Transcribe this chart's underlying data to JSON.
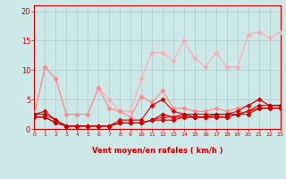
{
  "background_color": "#cce8e8",
  "grid_color": "#aacccc",
  "xlabel": "Vent moyen/en rafales ( km/h )",
  "x_ticks": [
    0,
    1,
    2,
    3,
    4,
    5,
    6,
    7,
    8,
    9,
    10,
    11,
    12,
    13,
    14,
    15,
    16,
    17,
    18,
    19,
    20,
    21,
    22,
    23
  ],
  "ylim": [
    0,
    21
  ],
  "xlim": [
    0,
    23
  ],
  "yticks": [
    0,
    5,
    10,
    15,
    20
  ],
  "series": [
    {
      "x": [
        0,
        1,
        2,
        3,
        4,
        5,
        6,
        7,
        8,
        9,
        10,
        11,
        12,
        13,
        14,
        15,
        16,
        17,
        18,
        19,
        20,
        21,
        22,
        23
      ],
      "y": [
        2.5,
        10.5,
        8.5,
        2.5,
        2.5,
        2.5,
        7.0,
        5.0,
        3.0,
        3.0,
        8.5,
        13.0,
        13.0,
        11.5,
        15.0,
        12.0,
        10.5,
        13.0,
        10.5,
        10.5,
        16.0,
        16.5,
        15.5,
        16.5
      ],
      "color": "#ffaaaa",
      "marker": "D",
      "linewidth": 0.8,
      "markersize": 2.5
    },
    {
      "x": [
        0,
        1,
        2,
        3,
        4,
        5,
        6,
        7,
        8,
        9,
        10,
        11,
        12,
        13,
        14,
        15,
        16,
        17,
        18,
        19,
        20,
        21,
        22,
        23
      ],
      "y": [
        2.5,
        10.5,
        8.5,
        2.5,
        2.5,
        2.5,
        7.0,
        3.5,
        3.0,
        2.0,
        5.5,
        4.5,
        6.5,
        3.5,
        3.5,
        3.0,
        3.0,
        3.5,
        3.0,
        3.5,
        4.0,
        5.0,
        4.0,
        4.0
      ],
      "color": "#ff8888",
      "marker": "D",
      "linewidth": 0.8,
      "markersize": 2.5
    },
    {
      "x": [
        0,
        1,
        2,
        3,
        4,
        5,
        6,
        7,
        8,
        9,
        10,
        11,
        12,
        13,
        14,
        15,
        16,
        17,
        18,
        19,
        20,
        21,
        22,
        23
      ],
      "y": [
        2.5,
        3.0,
        1.5,
        0.5,
        0.5,
        0.5,
        0.5,
        0.5,
        1.5,
        1.5,
        1.5,
        4.0,
        5.0,
        3.0,
        2.5,
        2.5,
        2.5,
        2.5,
        2.5,
        3.0,
        4.0,
        5.0,
        4.0,
        4.0
      ],
      "color": "#dd0000",
      "marker": "D",
      "linewidth": 0.8,
      "markersize": 2.5
    },
    {
      "x": [
        0,
        1,
        2,
        3,
        4,
        5,
        6,
        7,
        8,
        9,
        10,
        11,
        12,
        13,
        14,
        15,
        16,
        17,
        18,
        19,
        20,
        21,
        22,
        23
      ],
      "y": [
        2.5,
        2.5,
        1.5,
        0.5,
        0.5,
        0.5,
        0.5,
        0.5,
        1.0,
        1.0,
        1.0,
        1.5,
        2.5,
        2.0,
        2.5,
        2.0,
        2.0,
        2.5,
        2.5,
        2.5,
        3.0,
        4.0,
        4.0,
        4.0
      ],
      "color": "#bb0000",
      "marker": "D",
      "linewidth": 0.8,
      "markersize": 2.5
    },
    {
      "x": [
        0,
        1,
        2,
        3,
        4,
        5,
        6,
        7,
        8,
        9,
        10,
        11,
        12,
        13,
        14,
        15,
        16,
        17,
        18,
        19,
        20,
        21,
        22,
        23
      ],
      "y": [
        2.0,
        2.0,
        1.0,
        0.5,
        0.5,
        0.5,
        0.5,
        0.5,
        1.0,
        1.0,
        1.0,
        1.5,
        2.0,
        2.0,
        2.0,
        2.0,
        2.0,
        2.0,
        2.0,
        2.5,
        3.0,
        3.5,
        3.5,
        3.5
      ],
      "color": "#ff0000",
      "marker": "D",
      "linewidth": 0.8,
      "markersize": 2.5
    },
    {
      "x": [
        0,
        1,
        2,
        3,
        4,
        5,
        6,
        7,
        8,
        9,
        10,
        11,
        12,
        13,
        14,
        15,
        16,
        17,
        18,
        19,
        20,
        21,
        22,
        23
      ],
      "y": [
        2.0,
        2.0,
        1.0,
        0.5,
        0.5,
        0.5,
        0.5,
        0.5,
        1.0,
        1.0,
        1.0,
        1.5,
        1.5,
        1.5,
        2.0,
        2.0,
        2.0,
        2.0,
        2.0,
        2.5,
        2.5,
        3.5,
        3.5,
        3.5
      ],
      "color": "#cc0000",
      "marker": "D",
      "linewidth": 0.8,
      "markersize": 2.5
    }
  ],
  "wind_arrows": {
    "x": [
      0,
      1,
      2,
      3,
      4,
      5,
      6,
      7,
      8,
      9,
      10,
      11,
      12,
      13,
      14,
      15,
      16,
      17,
      18,
      19,
      20,
      21,
      22,
      23
    ],
    "angles_deg": [
      225,
      225,
      225,
      225,
      225,
      225,
      225,
      225,
      225,
      225,
      45,
      45,
      90,
      90,
      90,
      90,
      90,
      90,
      90,
      90,
      90,
      90,
      90,
      90
    ]
  },
  "spine_color": "#cc0000",
  "tick_color": "#cc0000",
  "label_color": "#cc0000",
  "xlabel_fontsize": 6,
  "ytick_fontsize": 6,
  "xtick_fontsize": 4.5
}
